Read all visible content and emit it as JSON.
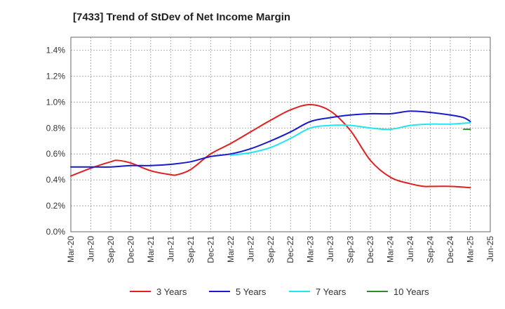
{
  "chart_data": {
    "type": "line",
    "title": "[7433]  Trend of StDev of Net Income Margin",
    "xlabel": "",
    "ylabel": "",
    "grid": true,
    "legend_position": "bottom",
    "x_ticks": [
      "Mar-20",
      "Jun-20",
      "Sep-20",
      "Dec-20",
      "Mar-21",
      "Jun-21",
      "Sep-21",
      "Dec-21",
      "Mar-22",
      "Jun-22",
      "Sep-22",
      "Dec-22",
      "Mar-23",
      "Jun-23",
      "Sep-23",
      "Dec-23",
      "Mar-24",
      "Jun-24",
      "Sep-24",
      "Dec-24",
      "Mar-25",
      "Jun-25"
    ],
    "y_ticks": [
      "0.0%",
      "0.2%",
      "0.4%",
      "0.6%",
      "0.8%",
      "1.0%",
      "1.2%",
      "1.4%"
    ],
    "ylim": [
      0,
      1.5
    ],
    "y_unit": "%",
    "series": [
      {
        "name": "3 Years",
        "color": "#e02020",
        "x": [
          "Mar-20",
          "Jun-20",
          "Sep-20",
          "Oct-20",
          "Dec-20",
          "Mar-21",
          "Jun-21",
          "Jul-21",
          "Sep-21",
          "Dec-21",
          "Mar-22",
          "Jun-22",
          "Sep-22",
          "Dec-22",
          "Mar-23",
          "Jun-23",
          "Sep-23",
          "Dec-23",
          "Mar-24",
          "Jun-24",
          "Aug-24",
          "Sep-24",
          "Dec-24",
          "Mar-25"
        ],
        "values": [
          0.43,
          0.49,
          0.54,
          0.55,
          0.53,
          0.47,
          0.44,
          0.44,
          0.48,
          0.6,
          0.68,
          0.77,
          0.86,
          0.94,
          0.98,
          0.93,
          0.78,
          0.55,
          0.42,
          0.37,
          0.35,
          0.35,
          0.35,
          0.34
        ]
      },
      {
        "name": "5 Years",
        "color": "#1a1acc",
        "x": [
          "Mar-20",
          "Jun-20",
          "Sep-20",
          "Dec-20",
          "Mar-21",
          "Jun-21",
          "Sep-21",
          "Dec-21",
          "Mar-22",
          "Jun-22",
          "Sep-22",
          "Dec-22",
          "Mar-23",
          "Jun-23",
          "Sep-23",
          "Dec-23",
          "Mar-24",
          "Jun-24",
          "Sep-24",
          "Dec-24",
          "Feb-25",
          "Mar-25"
        ],
        "values": [
          0.5,
          0.5,
          0.5,
          0.51,
          0.51,
          0.52,
          0.54,
          0.58,
          0.6,
          0.64,
          0.7,
          0.77,
          0.85,
          0.88,
          0.9,
          0.91,
          0.91,
          0.93,
          0.92,
          0.9,
          0.88,
          0.85
        ]
      },
      {
        "name": "7 Years",
        "color": "#22e5ef",
        "x": [
          "Mar-22",
          "Jun-22",
          "Sep-22",
          "Dec-22",
          "Mar-23",
          "Jun-23",
          "Sep-23",
          "Dec-23",
          "Mar-24",
          "Jun-24",
          "Sep-24",
          "Dec-24",
          "Mar-25"
        ],
        "values": [
          0.59,
          0.61,
          0.65,
          0.72,
          0.8,
          0.82,
          0.82,
          0.8,
          0.79,
          0.82,
          0.83,
          0.83,
          0.84
        ]
      },
      {
        "name": "10 Years",
        "color": "#2e8b2e",
        "x": [
          "Feb-25",
          "Mar-25"
        ],
        "values": [
          0.79,
          0.79
        ]
      }
    ]
  }
}
